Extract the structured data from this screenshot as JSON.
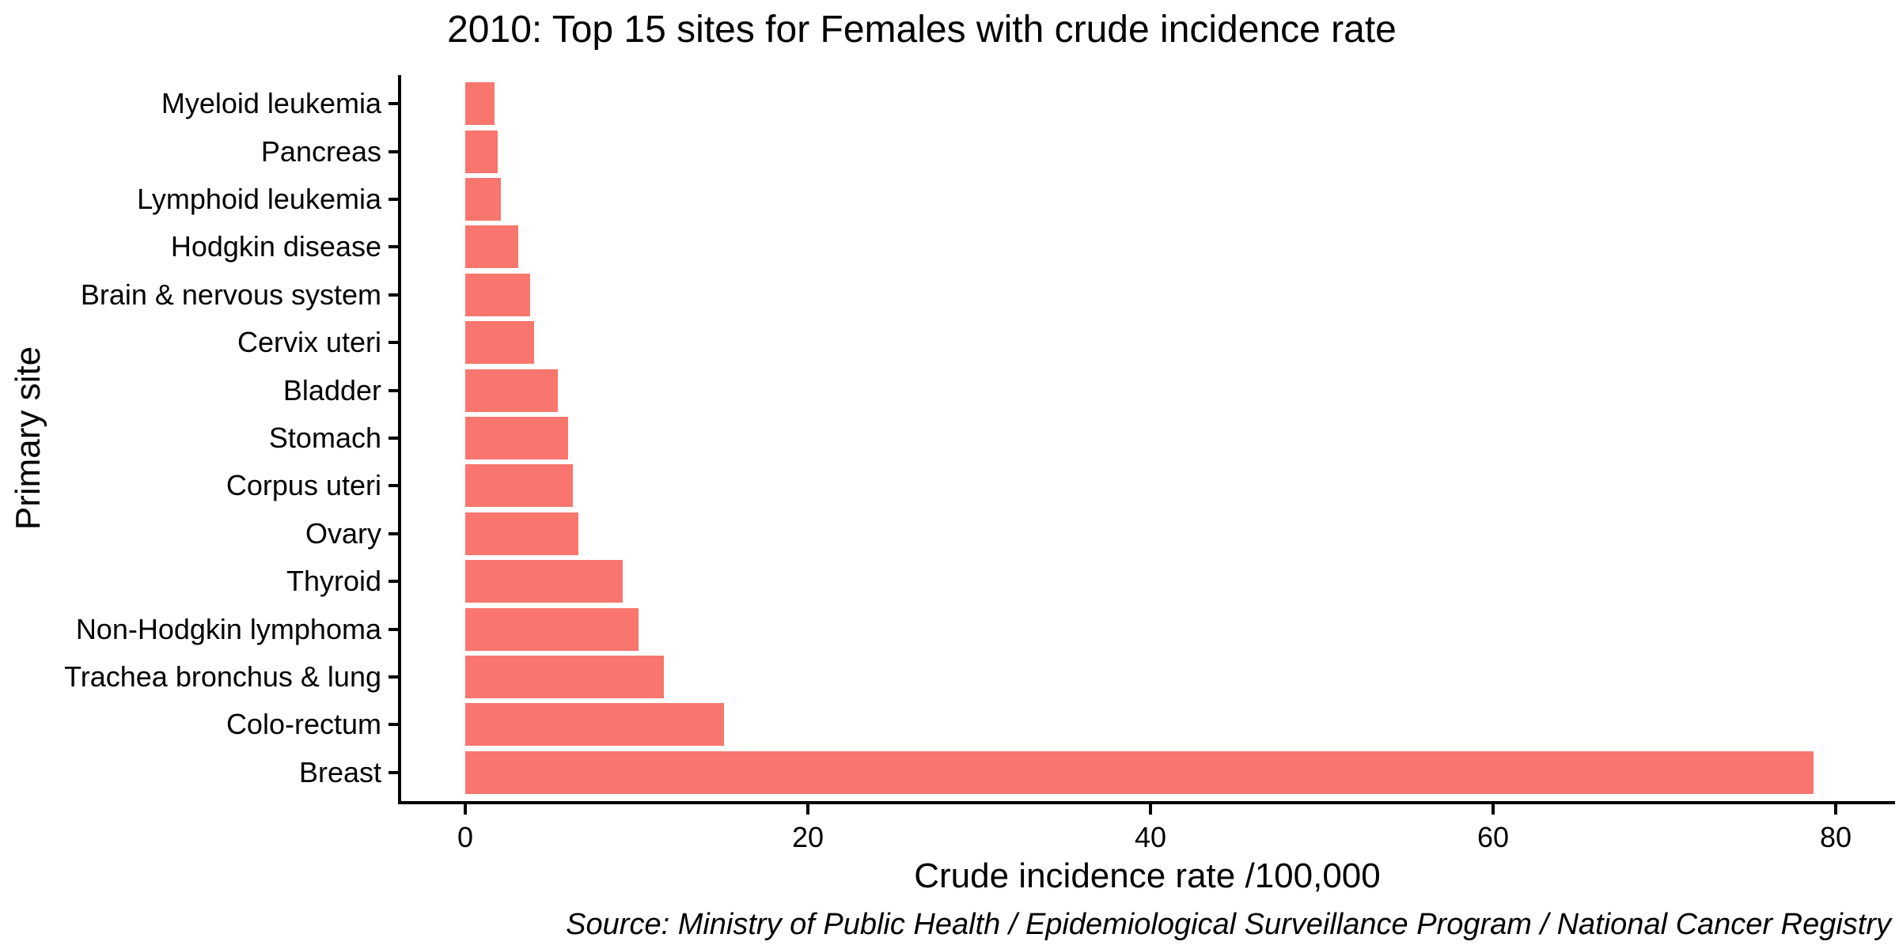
{
  "chart_data": {
    "type": "bar",
    "orientation": "horizontal",
    "title": "2010: Top 15 sites for Females with crude incidence rate",
    "xlabel": "Crude incidence rate /100,000",
    "ylabel": "Primary site",
    "source": "Source: Ministry of Public Health / Epidemiological Surveillance Program / National Cancer Registry",
    "categories": [
      "Myeloid leukemia",
      "Pancreas",
      "Lymphoid leukemia",
      "Hodgkin disease",
      "Brain & nervous system",
      "Cervix uteri",
      "Bladder",
      "Stomach",
      "Corpus uteri",
      "Ovary",
      "Thyroid",
      "Non-Hodgkin lymphoma",
      "Trachea bronchus & lung",
      "Colo-rectum",
      "Breast"
    ],
    "values": [
      1.7,
      1.9,
      2.1,
      3.1,
      3.8,
      4.0,
      5.4,
      6.0,
      6.3,
      6.6,
      9.2,
      10.1,
      11.6,
      15.1,
      78.7
    ],
    "xticks": [
      0,
      20,
      40,
      60,
      80
    ],
    "xlim": [
      0,
      83.5
    ],
    "bar_color": "#F8766D",
    "axis_color": "#000000",
    "grid": false,
    "legend": false
  }
}
